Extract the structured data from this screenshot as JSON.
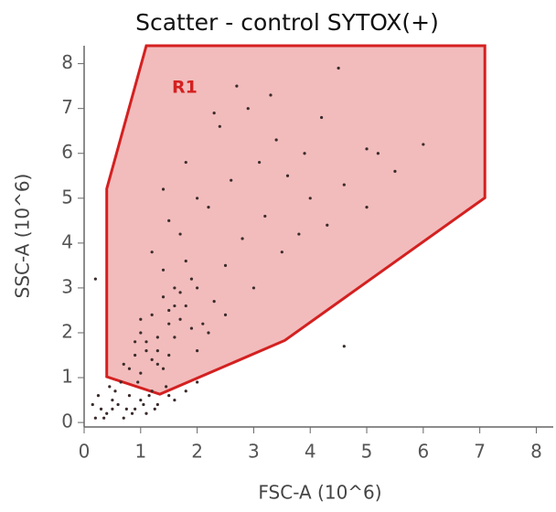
{
  "chart_data": {
    "type": "scatter",
    "title": "Scatter - control SYTOX(+)",
    "x_label": "FSC-A (10^6)",
    "y_label": "SSC-A (10^6)",
    "xlim": [
      0,
      8.3
    ],
    "ylim": [
      -0.1,
      8.4
    ],
    "xticks": [
      0,
      1,
      2,
      3,
      4,
      5,
      6,
      7,
      8
    ],
    "yticks": [
      0,
      1,
      2,
      3,
      4,
      5,
      6,
      7,
      8
    ],
    "series": [
      {
        "color": "#3b2b2b",
        "x": [
          0.2,
          0.3,
          0.4,
          0.5,
          0.6,
          0.7,
          0.8,
          0.9,
          1.0,
          1.1,
          1.2,
          1.3,
          1.5,
          0.25,
          0.45,
          0.65,
          0.85,
          1.05,
          1.25,
          1.45,
          0.15,
          0.35,
          0.55,
          0.75,
          0.95,
          1.15,
          1.6,
          1.8,
          2.0,
          0.5,
          0.8,
          0.9,
          1.0,
          1.1,
          1.2,
          1.3,
          1.4,
          0.7,
          1.0,
          1.5,
          1.6,
          1.7,
          1.8,
          1.9,
          2.0,
          1.2,
          1.4,
          1.6,
          1.3,
          1.5,
          1.7,
          1.9,
          2.1,
          2.3,
          1.1,
          0.9,
          1.4,
          1.8,
          2.2,
          1.5,
          1.6,
          1.3,
          2.0,
          2.5,
          1.0,
          2.5,
          2.8,
          3.0,
          3.2,
          3.5,
          3.8,
          4.0,
          4.3,
          4.6,
          5.0,
          5.5,
          6.0,
          2.2,
          2.6,
          3.1,
          3.4,
          3.9,
          4.5,
          1.7,
          2.0,
          2.4,
          2.9,
          3.3,
          1.5,
          1.8,
          2.3,
          2.7,
          3.6,
          4.2,
          5.0,
          5.2,
          1.2,
          1.4,
          4.6,
          0.2
        ],
        "y": [
          0.1,
          0.3,
          0.2,
          0.5,
          0.4,
          0.1,
          0.6,
          0.3,
          0.5,
          0.2,
          0.7,
          0.4,
          0.6,
          0.6,
          0.8,
          0.9,
          0.2,
          0.4,
          0.3,
          0.8,
          0.4,
          0.1,
          0.7,
          0.3,
          0.9,
          0.6,
          0.5,
          0.7,
          0.9,
          0.3,
          1.2,
          1.5,
          1.1,
          1.8,
          1.4,
          1.6,
          1.2,
          1.3,
          2.0,
          1.5,
          1.9,
          2.3,
          2.6,
          2.1,
          1.6,
          2.4,
          2.8,
          3.0,
          1.9,
          2.5,
          2.9,
          3.2,
          2.2,
          2.7,
          1.6,
          1.8,
          3.4,
          3.6,
          2.0,
          2.2,
          2.6,
          1.3,
          3.0,
          2.4,
          2.3,
          3.5,
          4.1,
          3.0,
          4.6,
          3.8,
          4.2,
          5.0,
          4.4,
          5.3,
          4.8,
          5.6,
          6.2,
          4.8,
          5.4,
          5.8,
          6.3,
          6.0,
          7.9,
          4.2,
          5.0,
          6.6,
          7.0,
          7.3,
          4.5,
          5.8,
          6.9,
          7.5,
          5.5,
          6.8,
          6.1,
          6.0,
          3.8,
          5.2,
          1.7,
          3.2
        ]
      }
    ],
    "gate": {
      "label": "R1",
      "color": "#d42020",
      "x": [
        1.1,
        7.09,
        7.09,
        3.55,
        1.34,
        0.4,
        0.4
      ],
      "y": [
        8.4,
        8.4,
        5.01,
        1.83,
        0.63,
        1.02,
        5.21
      ]
    }
  }
}
